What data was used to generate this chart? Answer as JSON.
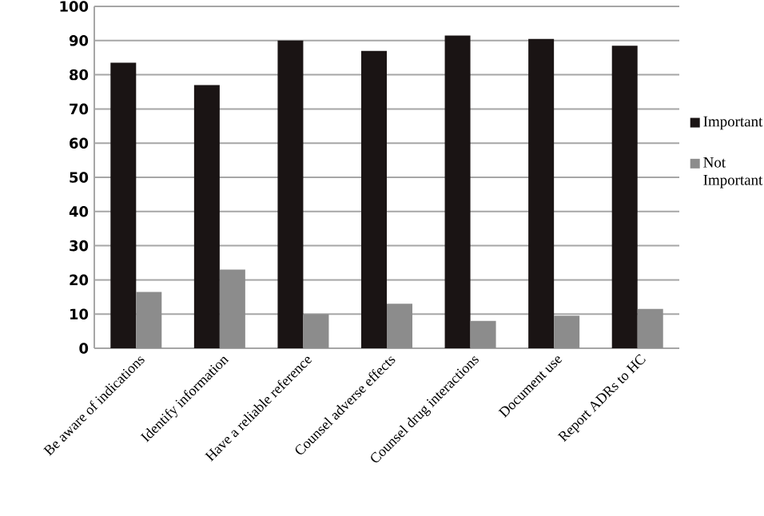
{
  "chart_data": {
    "type": "bar",
    "categories": [
      "Be aware of indications",
      "Identify  information",
      "Have a reliable reference",
      "Counsel adverse effects",
      "Counsel drug interactions",
      "Document use",
      "Report ADRs to HC"
    ],
    "series": [
      {
        "name": "Important",
        "color": "#1a1414",
        "values": [
          83.5,
          77,
          90,
          87,
          91.5,
          90.5,
          88.5
        ]
      },
      {
        "name": "Not Important",
        "color": "#8c8c8c",
        "values": [
          16.5,
          23,
          10,
          13,
          8,
          9.5,
          11.5
        ]
      }
    ],
    "ylim": [
      0,
      100
    ],
    "yticks": [
      0,
      10,
      20,
      30,
      40,
      50,
      60,
      70,
      80,
      90,
      100
    ],
    "grid": "y",
    "legend": "right"
  }
}
